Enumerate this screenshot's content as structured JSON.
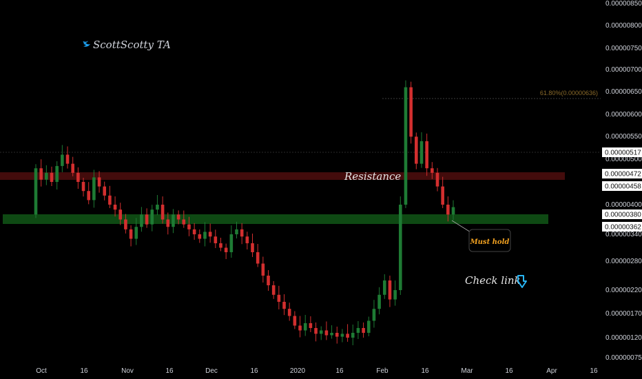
{
  "chart_data": {
    "type": "candlestick",
    "author": "ScottScotty TA",
    "colors": {
      "up": "#1e7b34",
      "down": "#d32f2f",
      "background": "#000000",
      "support_zone": "#0f4d14",
      "resistance_zone": "#4a0d0d",
      "accent": "#29b6f6"
    },
    "y_ticks": [
      "0.00000850",
      "0.00000800",
      "0.00000750",
      "0.00000700",
      "0.00000650",
      "0.00000600",
      "0.00000550",
      "0.00000500",
      "0.00000400",
      "0.00000340",
      "0.00000280",
      "0.00000220",
      "0.00000170",
      "0.00000120",
      "0.00000075"
    ],
    "x_ticks": [
      "Oct",
      "16",
      "Nov",
      "16",
      "Dec",
      "16",
      "2020",
      "16",
      "Feb",
      "16",
      "Mar",
      "16",
      "Apr",
      "16"
    ],
    "price_tags": [
      "0.00000517",
      "0.00000472",
      "0.00000458",
      "0.00000380",
      "0.00000362"
    ],
    "fib_label": "61.80%(0.00000636)",
    "annotations": {
      "resistance": "Resistance",
      "must_hold": "Must hold",
      "check_link": "Check link"
    },
    "zones": [
      {
        "kind": "resistance",
        "from": 4.58e-06,
        "to": 4.72e-06
      },
      {
        "kind": "support",
        "from": 3.62e-06,
        "to": 3.8e-06
      }
    ],
    "candles": [
      [
        3.8,
        4.8
      ],
      [
        4.8,
        4.55
      ],
      [
        4.55,
        4.7
      ],
      [
        4.7,
        4.5
      ],
      [
        4.5,
        4.85
      ],
      [
        4.85,
        5.1
      ],
      [
        5.1,
        4.9
      ],
      [
        4.9,
        4.7
      ],
      [
        4.7,
        4.5
      ],
      [
        4.5,
        4.3
      ],
      [
        4.3,
        4.1
      ],
      [
        4.1,
        4.6
      ],
      [
        4.6,
        4.4
      ],
      [
        4.4,
        4.2
      ],
      [
        4.2,
        4.0
      ],
      [
        4.0,
        3.9
      ],
      [
        3.9,
        3.7
      ],
      [
        3.7,
        3.5
      ],
      [
        3.5,
        3.3
      ],
      [
        3.3,
        3.55
      ],
      [
        3.55,
        3.8
      ],
      [
        3.8,
        3.6
      ],
      [
        3.6,
        3.9
      ],
      [
        3.9,
        4.0
      ],
      [
        4.0,
        3.7
      ],
      [
        3.7,
        3.55
      ],
      [
        3.55,
        3.8
      ],
      [
        3.8,
        3.7
      ],
      [
        3.7,
        3.6
      ],
      [
        3.6,
        3.5
      ],
      [
        3.5,
        3.4
      ],
      [
        3.4,
        3.3
      ],
      [
        3.3,
        3.45
      ],
      [
        3.45,
        3.35
      ],
      [
        3.35,
        3.2
      ],
      [
        3.2,
        3.1
      ],
      [
        3.1,
        3.0
      ],
      [
        3.0,
        3.4
      ],
      [
        3.4,
        3.5
      ],
      [
        3.5,
        3.35
      ],
      [
        3.35,
        3.2
      ],
      [
        3.2,
        3.0
      ],
      [
        3.0,
        2.75
      ],
      [
        2.75,
        2.5
      ],
      [
        2.5,
        2.3
      ],
      [
        2.3,
        2.1
      ],
      [
        2.1,
        1.95
      ],
      [
        1.95,
        1.8
      ],
      [
        1.8,
        1.65
      ],
      [
        1.65,
        1.45
      ],
      [
        1.45,
        1.35
      ],
      [
        1.35,
        1.5
      ],
      [
        1.5,
        1.4
      ],
      [
        1.4,
        1.28
      ],
      [
        1.28,
        1.35
      ],
      [
        1.35,
        1.25
      ],
      [
        1.25,
        1.3
      ],
      [
        1.3,
        1.22
      ],
      [
        1.22,
        1.28
      ],
      [
        1.28,
        1.2
      ],
      [
        1.2,
        1.3
      ],
      [
        1.3,
        1.4
      ],
      [
        1.4,
        1.3
      ],
      [
        1.3,
        1.55
      ],
      [
        1.55,
        1.8
      ],
      [
        1.8,
        2.1
      ],
      [
        2.1,
        2.4
      ],
      [
        2.4,
        2.0
      ],
      [
        2.0,
        2.2
      ],
      [
        2.2,
        4.0
      ],
      [
        4.0,
        6.6
      ],
      [
        6.6,
        5.5
      ],
      [
        5.5,
        4.9
      ],
      [
        4.9,
        5.4
      ],
      [
        5.4,
        4.8
      ],
      [
        4.8,
        4.7
      ],
      [
        4.7,
        4.4
      ],
      [
        4.4,
        4.0
      ],
      [
        4.0,
        3.8
      ],
      [
        3.8,
        3.95
      ]
    ]
  }
}
